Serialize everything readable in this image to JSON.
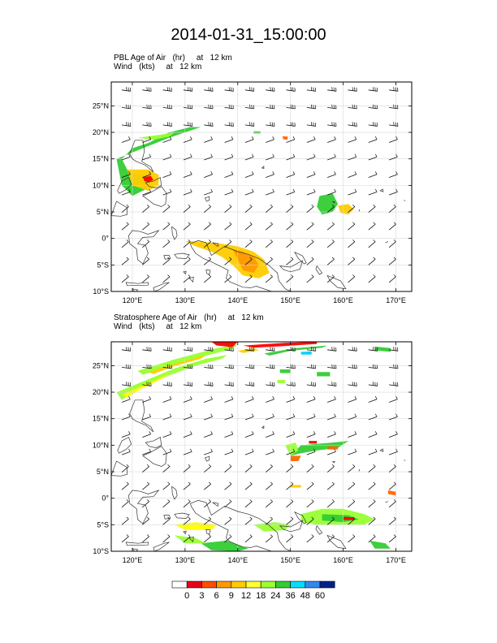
{
  "title": "2014-01-31_15:00:00",
  "panels": [
    {
      "id": "pbl",
      "caption_line1": "PBL Age of Air   (hr)     at   12 km",
      "caption_line2": "Wind   (kts)     at   12 km",
      "patches": [
        {
          "color": "#33cc33",
          "points": [
            [
              117,
              15
            ],
            [
              122,
              17
            ],
            [
              127,
              19
            ],
            [
              130,
              20
            ],
            [
              133,
              21
            ],
            [
              131,
              21
            ],
            [
              127,
              20
            ],
            [
              123,
              18
            ],
            [
              120,
              17
            ],
            [
              118,
              15
            ],
            [
              119,
              13
            ],
            [
              121,
              12
            ],
            [
              123,
              12
            ],
            [
              124,
              10
            ],
            [
              122,
              9
            ],
            [
              120,
              8
            ],
            [
              118,
              10
            ]
          ]
        },
        {
          "color": "#ffcc00",
          "points": [
            [
              119,
              13
            ],
            [
              123,
              13
            ],
            [
              125,
              12
            ],
            [
              125,
              10
            ],
            [
              123,
              9
            ],
            [
              120,
              10
            ]
          ]
        },
        {
          "color": "#ff0000",
          "points": [
            [
              122,
              11.5
            ],
            [
              123.5,
              11.8
            ],
            [
              124,
              11
            ],
            [
              123,
              10.6
            ],
            [
              122.3,
              10.8
            ]
          ]
        },
        {
          "color": "#99ff33",
          "points": [
            [
              121,
              19
            ],
            [
              125,
              19.5
            ],
            [
              128,
              20
            ],
            [
              127,
              19.2
            ],
            [
              124,
              18.6
            ]
          ]
        },
        {
          "color": "#33cc33",
          "points": [
            [
              155.5,
              8
            ],
            [
              158,
              8.5
            ],
            [
              159,
              6.5
            ],
            [
              158,
              5
            ],
            [
              156,
              4.5
            ],
            [
              155,
              6
            ]
          ]
        },
        {
          "color": "#ffcc00",
          "points": [
            [
              159,
              6.2
            ],
            [
              161,
              6.5
            ],
            [
              162,
              5.5
            ],
            [
              161,
              4.5
            ],
            [
              159.5,
              4.8
            ]
          ]
        },
        {
          "color": "#ffcc00",
          "points": [
            [
              130,
              -0.5
            ],
            [
              133,
              -0.6
            ],
            [
              137,
              -1
            ],
            [
              140,
              -1.5
            ],
            [
              143,
              -2.5
            ],
            [
              145,
              -4
            ],
            [
              146,
              -6.5
            ],
            [
              144,
              -7.5
            ],
            [
              141,
              -7
            ],
            [
              139,
              -5
            ],
            [
              137,
              -3.5
            ],
            [
              135,
              -2.5
            ],
            [
              132,
              -1.5
            ]
          ]
        },
        {
          "color": "#ff9900",
          "points": [
            [
              139,
              -2
            ],
            [
              141,
              -2.5
            ],
            [
              143,
              -3.5
            ],
            [
              144,
              -5
            ],
            [
              143,
              -6.5
            ],
            [
              141,
              -6
            ],
            [
              140,
              -4
            ]
          ]
        },
        {
          "color": "#33cc33",
          "points": [
            [
              143,
              20.2
            ],
            [
              144.3,
              20.2
            ],
            [
              144.3,
              19.8
            ],
            [
              143,
              19.8
            ]
          ]
        },
        {
          "color": "#ff6600",
          "points": [
            [
              148.5,
              19.3
            ],
            [
              149.5,
              19.2
            ],
            [
              149.4,
              18.6
            ],
            [
              148.6,
              18.7
            ]
          ]
        }
      ]
    },
    {
      "id": "strat",
      "caption_line1": "Stratosphere Age of Air   (hr)     at   12 km",
      "caption_line2": "Wind   (kts)     at   12 km",
      "patches": [
        {
          "color": "#99ff33",
          "points": [
            [
              117,
              20
            ],
            [
              122,
              22
            ],
            [
              128,
              24.5
            ],
            [
              134,
              26.3
            ],
            [
              138,
              27
            ],
            [
              137,
              26.3
            ],
            [
              132,
              25
            ],
            [
              126,
              22.8
            ],
            [
              121,
              20.5
            ],
            [
              118,
              18.5
            ]
          ]
        },
        {
          "color": "#ffff00",
          "points": [
            [
              118,
              19.5
            ],
            [
              123,
              21.7
            ],
            [
              127,
              23.5
            ],
            [
              126,
              22.7
            ],
            [
              122,
              20.8
            ],
            [
              119,
              19
            ]
          ]
        },
        {
          "color": "#99ff33",
          "points": [
            [
              121,
              24
            ],
            [
              128,
              26.2
            ],
            [
              136,
              28.3
            ],
            [
              140,
              29
            ],
            [
              139,
              28.2
            ],
            [
              133,
              26.6
            ],
            [
              126,
              24.5
            ],
            [
              122,
              23.3
            ]
          ]
        },
        {
          "color": "#ffcc00",
          "points": [
            [
              123,
              23.8
            ],
            [
              129,
              25.6
            ],
            [
              134,
              27
            ],
            [
              133,
              26.3
            ],
            [
              128,
              24.9
            ],
            [
              124,
              23.4
            ]
          ]
        },
        {
          "color": "#ff0000",
          "points": [
            [
              135,
              29.5
            ],
            [
              140,
              29.5
            ],
            [
              139,
              28.5
            ],
            [
              136,
              28.8
            ]
          ]
        },
        {
          "color": "#ff0000",
          "points": [
            [
              141,
              28.8
            ],
            [
              149,
              29.3
            ],
            [
              155,
              29.5
            ],
            [
              155,
              29.1
            ],
            [
              149,
              28.7
            ],
            [
              143,
              28.4
            ]
          ]
        },
        {
          "color": "#33cc33",
          "points": [
            [
              145,
              27.3
            ],
            [
              151,
              28.3
            ],
            [
              157,
              28.8
            ],
            [
              156,
              28.4
            ],
            [
              150,
              27.8
            ],
            [
              146,
              26.9
            ]
          ]
        },
        {
          "color": "#ffcc00",
          "points": [
            [
              140,
              27.8
            ],
            [
              143,
              28.3
            ],
            [
              144,
              27.9
            ],
            [
              141,
              27.4
            ]
          ]
        },
        {
          "color": "#00ccff",
          "points": [
            [
              152,
              27.6
            ],
            [
              154,
              27.7
            ],
            [
              154,
              27.1
            ],
            [
              152,
              27.1
            ]
          ]
        },
        {
          "color": "#33cc33",
          "points": [
            [
              166,
              28.6
            ],
            [
              169,
              28.3
            ],
            [
              169,
              27.6
            ],
            [
              166,
              27.9
            ]
          ]
        },
        {
          "color": "#33cc33",
          "points": [
            [
              155,
              23.8
            ],
            [
              157.5,
              23.8
            ],
            [
              157.5,
              23
            ],
            [
              155,
              23
            ]
          ]
        },
        {
          "color": "#33cc33",
          "points": [
            [
              148,
              24.3
            ],
            [
              150,
              24.3
            ],
            [
              150,
              23.6
            ],
            [
              148,
              23.6
            ]
          ]
        },
        {
          "color": "#99ff33",
          "points": [
            [
              147.5,
              22.3
            ],
            [
              149,
              22.3
            ],
            [
              149,
              21.7
            ],
            [
              147.5,
              21.7
            ]
          ]
        },
        {
          "color": "#33cc33",
          "points": [
            [
              152,
              10
            ],
            [
              158,
              10.5
            ],
            [
              161,
              10.8
            ],
            [
              159,
              9.5
            ],
            [
              155,
              9
            ],
            [
              152,
              8.5
            ],
            [
              150,
              8
            ]
          ]
        },
        {
          "color": "#99ff33",
          "points": [
            [
              149,
              10
            ],
            [
              151,
              10.5
            ],
            [
              151.5,
              9
            ],
            [
              150,
              8
            ]
          ]
        },
        {
          "color": "#ff6600",
          "points": [
            [
              150,
              8
            ],
            [
              152,
              8
            ],
            [
              151.5,
              7
            ],
            [
              150,
              7
            ]
          ]
        },
        {
          "color": "#ff0000",
          "points": [
            [
              153.5,
              10.8
            ],
            [
              155,
              10.8
            ],
            [
              155,
              10.3
            ],
            [
              153.5,
              10.3
            ]
          ]
        },
        {
          "color": "#ff6600",
          "points": [
            [
              157,
              9.8
            ],
            [
              159,
              9.8
            ],
            [
              159,
              9.2
            ],
            [
              157,
              9.2
            ]
          ]
        },
        {
          "color": "#99ff33",
          "points": [
            [
              152,
              -3
            ],
            [
              156,
              -2
            ],
            [
              160,
              -2
            ],
            [
              164,
              -3
            ],
            [
              166,
              -4
            ],
            [
              164,
              -5
            ],
            [
              159,
              -5
            ],
            [
              155,
              -5
            ],
            [
              152,
              -4.5
            ]
          ]
        },
        {
          "color": "#33cc33",
          "points": [
            [
              156,
              -3
            ],
            [
              161,
              -3.2
            ],
            [
              163,
              -4
            ],
            [
              160,
              -4.5
            ],
            [
              156,
              -4.2
            ]
          ]
        },
        {
          "color": "#ff0000",
          "points": [
            [
              160,
              -3.5
            ],
            [
              162,
              -3.6
            ],
            [
              162,
              -4.1
            ],
            [
              160,
              -4.1
            ]
          ]
        },
        {
          "color": "#ffcc00",
          "points": [
            [
              150,
              2.5
            ],
            [
              152,
              2.5
            ],
            [
              152,
              2
            ],
            [
              150,
              2
            ]
          ]
        },
        {
          "color": "#99ff33",
          "points": [
            [
              143,
              -5
            ],
            [
              147,
              -4.5
            ],
            [
              150,
              -5
            ],
            [
              149,
              -6
            ],
            [
              145,
              -6.3
            ]
          ]
        },
        {
          "color": "#ffff00",
          "points": [
            [
              128,
              -5
            ],
            [
              132,
              -4.5
            ],
            [
              136,
              -5
            ],
            [
              135,
              -6
            ],
            [
              130,
              -6
            ]
          ]
        },
        {
          "color": "#33cc33",
          "points": [
            [
              133,
              -8.5
            ],
            [
              138,
              -8
            ],
            [
              142,
              -9.5
            ],
            [
              140,
              -10
            ],
            [
              135,
              -9.8
            ]
          ]
        },
        {
          "color": "#99ff33",
          "points": [
            [
              128,
              -7
            ],
            [
              132,
              -7.5
            ],
            [
              134,
              -8.5
            ],
            [
              130,
              -8.5
            ]
          ]
        },
        {
          "color": "#ff6600",
          "points": [
            [
              168.5,
              1.5
            ],
            [
              170,
              1.2
            ],
            [
              170,
              0.5
            ],
            [
              168.5,
              0.8
            ]
          ]
        },
        {
          "color": "#33cc33",
          "points": [
            [
              165,
              -8
            ],
            [
              168,
              -8.5
            ],
            [
              169,
              -9.5
            ],
            [
              166,
              -9.5
            ]
          ]
        }
      ]
    }
  ],
  "colorbar": {
    "labels": [
      "0",
      "3",
      "6",
      "9",
      "12",
      "18",
      "24",
      "36",
      "48",
      "60"
    ],
    "colors": [
      "#ffffff",
      "#e8001a",
      "#ff4d00",
      "#ff9900",
      "#ffcc00",
      "#ffff33",
      "#99ff33",
      "#33cc33",
      "#00ddff",
      "#3388ee",
      "#002288"
    ]
  },
  "map": {
    "lon_range": [
      116,
      173
    ],
    "lat_range": [
      -10,
      29.5
    ],
    "lon_ticks": [
      "120°E",
      "130°E",
      "140°E",
      "150°E",
      "160°E",
      "170°E"
    ],
    "lat_ticks": [
      "25°N",
      "20°N",
      "15°N",
      "10°N",
      "5°N",
      "0°",
      "5°S",
      "10°S"
    ]
  }
}
